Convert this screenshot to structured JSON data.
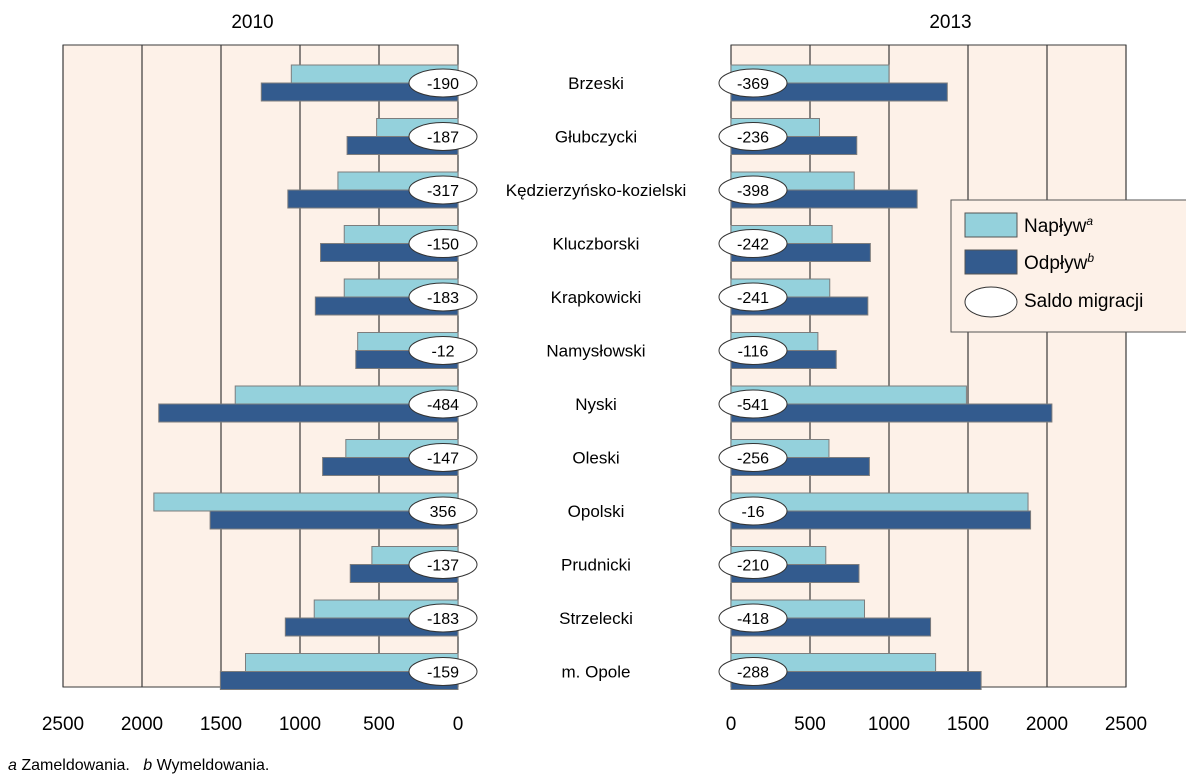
{
  "chart_data": {
    "type": "bar",
    "categories": [
      "Brzeski",
      "Głubczycki",
      "Kędzierzyńsko-kozielski",
      "Kluczborski",
      "Krapkowicki",
      "Namysłowski",
      "Nyski",
      "Oleski",
      "Opolski",
      "Prudnicki",
      "Strzelecki",
      "m. Opole"
    ],
    "panels": [
      {
        "title": "2010",
        "direction": "reversed",
        "xlim": [
          0,
          2500
        ],
        "xticks": [
          "2500",
          "2000",
          "1500",
          "1000",
          "500",
          "0"
        ],
        "series": [
          {
            "name": "Napływ",
            "values": [
              1055,
              515,
              760,
              720,
              720,
              635,
              1410,
              710,
              1925,
              545,
              910,
              1345
            ]
          },
          {
            "name": "Odpływ",
            "values": [
              1245,
              702,
              1077,
              870,
              903,
              647,
              1894,
              857,
              1569,
              682,
              1093,
              1504
            ]
          }
        ],
        "saldo": [
          "-190",
          "-187",
          "-317",
          "-150",
          "-183",
          "-12",
          "-484",
          "-147",
          "356",
          "-137",
          "-183",
          "-159"
        ]
      },
      {
        "title": "2013",
        "direction": "normal",
        "xlim": [
          0,
          2500
        ],
        "xticks": [
          "0",
          "500",
          "1000",
          "1500",
          "2000",
          "2500"
        ],
        "series": [
          {
            "name": "Napływ",
            "values": [
              1000,
              560,
              780,
              640,
              625,
              550,
              1490,
              620,
              1880,
              600,
              845,
              1295
            ]
          },
          {
            "name": "Odpływ",
            "values": [
              1369,
              796,
              1178,
              882,
              866,
              666,
              2031,
              876,
              1896,
              810,
              1263,
              1583
            ]
          }
        ],
        "saldo": [
          "-369",
          "-236",
          "-398",
          "-242",
          "-241",
          "-116",
          "-541",
          "-256",
          "-16",
          "-210",
          "-418",
          "-288"
        ]
      }
    ],
    "legend": {
      "position": "right",
      "items": [
        {
          "label": "Napływ",
          "sup": "a"
        },
        {
          "label": "Odpływ",
          "sup": "b"
        },
        {
          "label": "Saldo migracji",
          "sup": ""
        }
      ]
    },
    "colors": {
      "inflow": "#94d1dc",
      "outflow": "#335b8e",
      "plot_bg": "#fdf1e8",
      "grid": "#3a3a3a",
      "bar_border": "#7d7d7d"
    }
  },
  "footnote": {
    "a_mark": "a",
    "a_text": "Zameldowania.",
    "b_mark": "b",
    "b_text": "Wymeldowania."
  }
}
